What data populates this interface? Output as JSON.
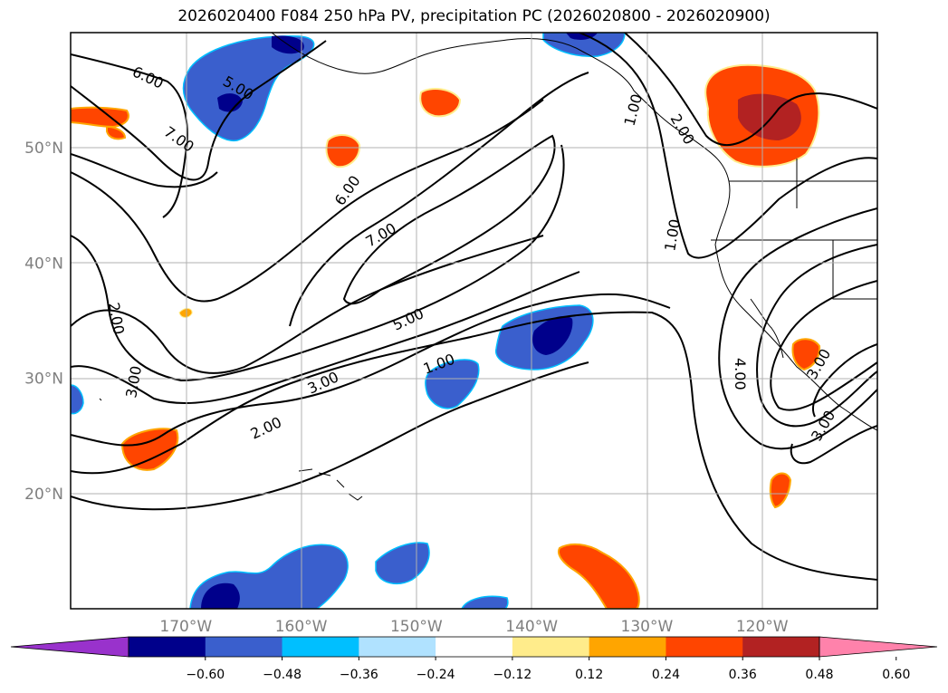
{
  "title": "2026020400 F084 250 hPa PV, precipitation PC (2026020800 - 2026020900)",
  "map": {
    "lon_range": [
      -180,
      -110
    ],
    "lat_range": [
      10,
      60
    ],
    "lon_ticks": [
      {
        "value": -170,
        "label": "170°W"
      },
      {
        "value": -160,
        "label": "160°W"
      },
      {
        "value": -150,
        "label": "150°W"
      },
      {
        "value": -140,
        "label": "140°W"
      },
      {
        "value": -130,
        "label": "130°W"
      },
      {
        "value": -120,
        "label": "120°W"
      }
    ],
    "lat_ticks": [
      {
        "value": 20,
        "label": "20°N"
      },
      {
        "value": 30,
        "label": "30°N"
      },
      {
        "value": 40,
        "label": "40°N"
      },
      {
        "value": 50,
        "label": "50°N"
      }
    ],
    "gridlines": true
  },
  "contour_labels": [
    "6.00",
    "5.00",
    "7.00",
    "6.00",
    "7.00",
    "5.00",
    "3.00",
    "2.00",
    "1.00",
    "2.00",
    "3.00",
    "1.00",
    "4.00",
    "3.00",
    "1.00",
    "2.00",
    "3.00"
  ],
  "colorbar": {
    "extend": "both",
    "colors": [
      "#9932cc",
      "#00008b",
      "#3a5fcd",
      "#00bfff",
      "#b0e2ff",
      "#ffffff",
      "#ffec8b",
      "#ffa500",
      "#ff4500",
      "#b22222",
      "#ff82ab"
    ],
    "ticks": [
      "−0.60",
      "−0.48",
      "−0.36",
      "−0.24",
      "−0.12",
      "0.12",
      "0.24",
      "0.36",
      "0.48",
      "0.60"
    ]
  }
}
